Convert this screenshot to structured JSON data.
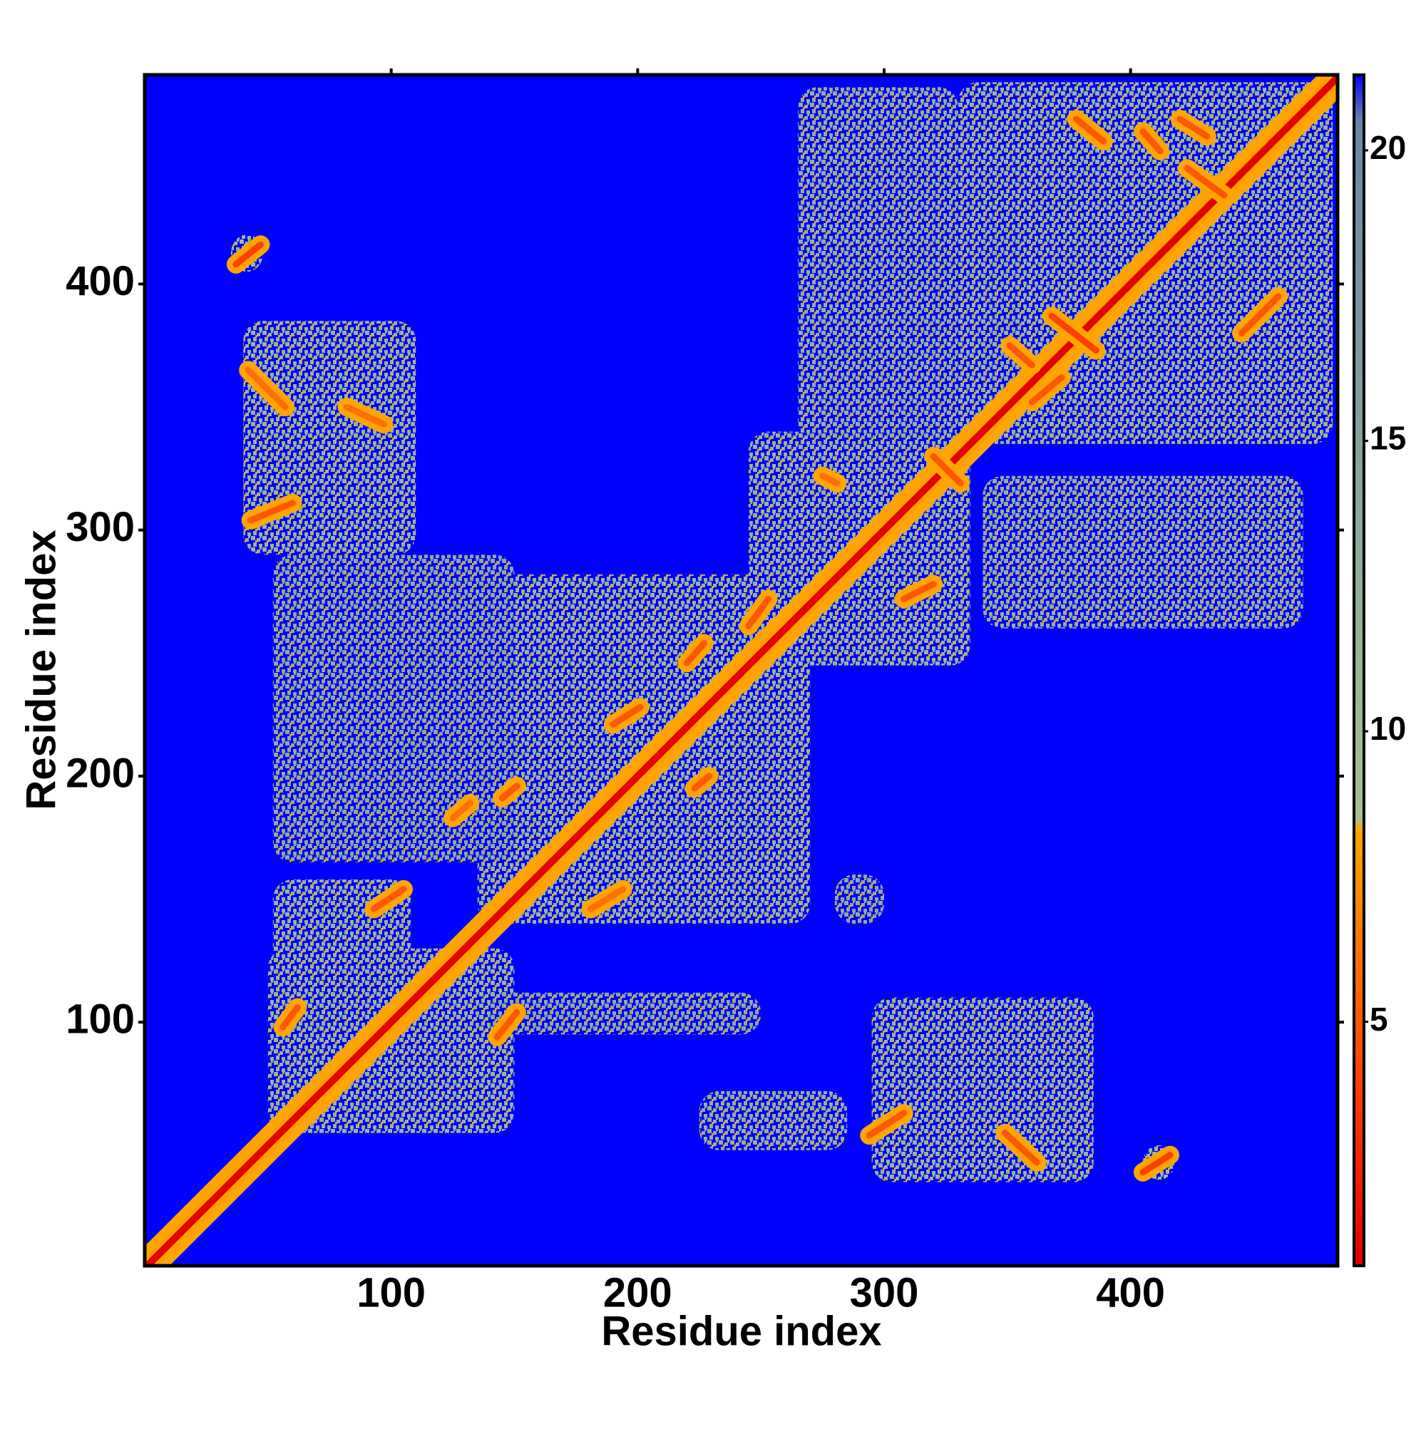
{
  "chart_data": {
    "type": "heatmap",
    "xlabel": "Residue index",
    "ylabel": "Residue index",
    "xlim": [
      0,
      484
    ],
    "ylim": [
      1,
      485
    ],
    "xticks": [
      100,
      200,
      300,
      400
    ],
    "yticks": [
      100,
      200,
      300,
      400
    ],
    "background": "#0000ff",
    "colorbar": {
      "lim": [
        0.8,
        21.3
      ],
      "ticks": [
        5,
        10,
        15,
        20
      ],
      "colormap": [
        [
          0.8,
          "#e00000"
        ],
        [
          4,
          "#ff4000"
        ],
        [
          8.3,
          "#ffa500"
        ],
        [
          8.5,
          "#a8c090"
        ],
        [
          20.5,
          "#6a86a8"
        ],
        [
          21.3,
          "#0000ff"
        ]
      ]
    },
    "diagonal": {
      "x": [
        1,
        484
      ],
      "y": [
        1,
        484
      ],
      "value": 1
    },
    "patches": [
      {
        "x": [
          50,
          150
        ],
        "y": [
          55,
          130
        ],
        "value": 11
      },
      {
        "x": [
          52,
          108
        ],
        "y": [
          118,
          158
        ],
        "value": 11
      },
      {
        "x": [
          135,
          270
        ],
        "y": [
          140,
          282
        ],
        "value": 11
      },
      {
        "x": [
          245,
          335
        ],
        "y": [
          245,
          340
        ],
        "value": 11
      },
      {
        "x": [
          330,
          482
        ],
        "y": [
          335,
          482
        ],
        "value": 11
      },
      {
        "x": [
          40,
          110
        ],
        "y": [
          290,
          385
        ],
        "value": 11
      },
      {
        "x": [
          295,
          385
        ],
        "y": [
          35,
          110
        ],
        "value": 11
      },
      {
        "x": [
          340,
          470
        ],
        "y": [
          260,
          322
        ],
        "value": 12
      },
      {
        "x": [
          265,
          330
        ],
        "y": [
          335,
          480
        ],
        "value": 12
      },
      {
        "x": [
          225,
          285
        ],
        "y": [
          48,
          72
        ],
        "value": 12
      },
      {
        "x": [
          140,
          250
        ],
        "y": [
          95,
          112
        ],
        "value": 13
      },
      {
        "x": [
          52,
          150
        ],
        "y": [
          165,
          290
        ],
        "value": 13
      },
      {
        "x": [
          405,
          418
        ],
        "y": [
          36,
          50
        ],
        "value": 10
      },
      {
        "x": [
          35,
          48
        ],
        "y": [
          405,
          420
        ],
        "value": 10
      },
      {
        "x": [
          280,
          300
        ],
        "y": [
          140,
          160
        ],
        "value": 13
      },
      {
        "x": [
          340,
          355
        ],
        "y": [
          360,
          430
        ],
        "value": 12
      }
    ],
    "contacts": [
      {
        "x": [
          37,
          47
        ],
        "y": [
          408,
          416
        ],
        "value": 4
      },
      {
        "x": [
          378,
          389
        ],
        "y": [
          467,
          458
        ],
        "value": 5
      },
      {
        "x": [
          405,
          412
        ],
        "y": [
          462,
          454
        ],
        "value": 5
      },
      {
        "x": [
          420,
          431
        ],
        "y": [
          467,
          460
        ],
        "value": 5
      },
      {
        "x": [
          423,
          438
        ],
        "y": [
          447,
          436
        ],
        "value": 5
      },
      {
        "x": [
          368,
          386
        ],
        "y": [
          387,
          373
        ],
        "value": 4
      },
      {
        "x": [
          351,
          360
        ],
        "y": [
          375,
          367
        ],
        "value": 5
      },
      {
        "x": [
          320,
          331
        ],
        "y": [
          330,
          319
        ],
        "value": 5
      },
      {
        "x": [
          275,
          281
        ],
        "y": [
          322,
          319
        ],
        "value": 6
      },
      {
        "x": [
          43,
          60
        ],
        "y": [
          304,
          311
        ],
        "value": 5
      },
      {
        "x": [
          42,
          57
        ],
        "y": [
          365,
          350
        ],
        "value": 6
      },
      {
        "x": [
          82,
          97
        ],
        "y": [
          350,
          343
        ],
        "value": 6
      },
      {
        "x": [
          245,
          253
        ],
        "y": [
          261,
          272
        ],
        "value": 5
      },
      {
        "x": [
          220,
          227
        ],
        "y": [
          246,
          254
        ],
        "value": 5
      },
      {
        "x": [
          190,
          201
        ],
        "y": [
          221,
          228
        ],
        "value": 5
      },
      {
        "x": [
          125,
          132
        ],
        "y": [
          183,
          189
        ],
        "value": 6
      },
      {
        "x": [
          145,
          151
        ],
        "y": [
          191,
          196
        ],
        "value": 5
      },
      {
        "x": [
          93,
          105
        ],
        "y": [
          146,
          154
        ],
        "value": 5
      },
      {
        "x": [
          56,
          62
        ],
        "y": [
          98,
          106
        ],
        "value": 5
      },
      {
        "x": [
          143,
          151
        ],
        "y": [
          94,
          104
        ],
        "value": 5
      },
      {
        "x": [
          349,
          362
        ],
        "y": [
          55,
          43
        ],
        "value": 5
      },
      {
        "x": [
          405,
          416
        ],
        "y": [
          39,
          46
        ],
        "value": 4
      },
      {
        "x": [
          294,
          308
        ],
        "y": [
          54,
          63
        ],
        "value": 5
      },
      {
        "x": [
          223,
          229
        ],
        "y": [
          195,
          200
        ],
        "value": 5
      },
      {
        "x": [
          181,
          194
        ],
        "y": [
          146,
          154
        ],
        "value": 6
      },
      {
        "x": [
          308,
          320
        ],
        "y": [
          272,
          278
        ],
        "value": 5
      },
      {
        "x": [
          360,
          372
        ],
        "y": [
          352,
          362
        ],
        "value": 5
      },
      {
        "x": [
          445,
          460
        ],
        "y": [
          380,
          395
        ],
        "value": 5
      }
    ]
  }
}
